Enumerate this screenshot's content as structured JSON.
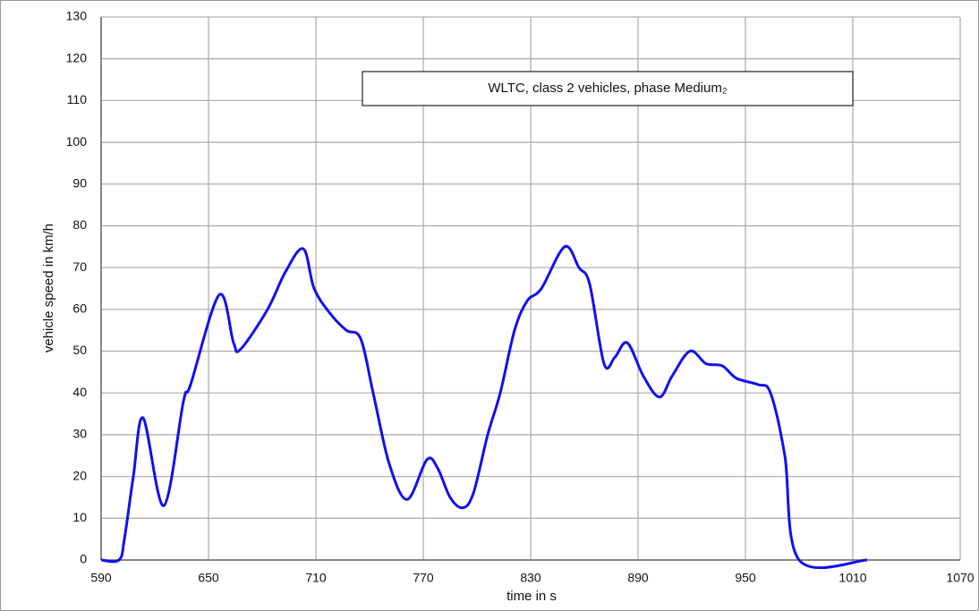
{
  "chart_data": {
    "type": "line",
    "title": "WLTC, class 2 vehicles, phase Medium₂",
    "x_label": "time in s",
    "y_label": "vehicle speed in km/h",
    "x": [
      590,
      600,
      603,
      608,
      613.5,
      625,
      636,
      640,
      656,
      664,
      668,
      683,
      693,
      703,
      709,
      718,
      727,
      735,
      742,
      751,
      761,
      772,
      778,
      785,
      792,
      798,
      806,
      813,
      821,
      828,
      836,
      849,
      857,
      863,
      871,
      877,
      884,
      893,
      902,
      909,
      919,
      928,
      937,
      945,
      957,
      964,
      972,
      980,
      1018
    ],
    "values": [
      0,
      0,
      5,
      20,
      34,
      13,
      38,
      42,
      63.5,
      52,
      50.5,
      60,
      69,
      74.5,
      65,
      59,
      55,
      53,
      40,
      23,
      14.5,
      24,
      22,
      15,
      12.5,
      16,
      30,
      40,
      55,
      62,
      65,
      75,
      70,
      66,
      47,
      48.5,
      52,
      44,
      39,
      44,
      50,
      47,
      46.5,
      43.5,
      42,
      40,
      25,
      0,
      0
    ],
    "color": "#1010ee",
    "xlim": [
      590,
      1070
    ],
    "xticks": [
      590,
      650,
      710,
      770,
      830,
      890,
      950,
      1010,
      1070
    ],
    "ylim": [
      0,
      130
    ],
    "yticks": [
      0,
      10,
      20,
      30,
      40,
      50,
      60,
      70,
      80,
      90,
      100,
      110,
      120,
      130
    ],
    "grid": true
  }
}
